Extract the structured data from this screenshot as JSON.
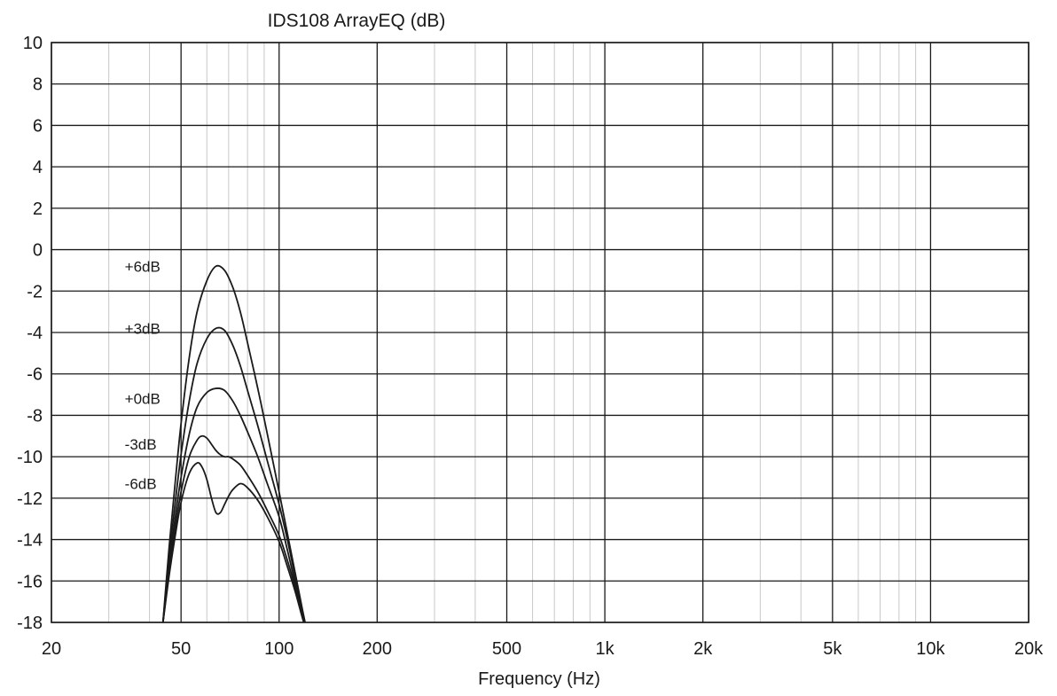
{
  "chart_data": {
    "type": "line",
    "title": "IDS108 ArrayEQ (dB)",
    "xlabel": "Frequency (Hz)",
    "ylabel": "",
    "x_scale": "log",
    "xlim": [
      20,
      20000
    ],
    "ylim": [
      -18,
      10
    ],
    "grid": true,
    "x_major_ticks": [
      20,
      50,
      100,
      200,
      500,
      1000,
      2000,
      5000,
      10000,
      20000
    ],
    "x_tick_labels": [
      "20",
      "50",
      "100",
      "200",
      "500",
      "1k",
      "2k",
      "5k",
      "10k",
      "20k"
    ],
    "x_minor_ticks": [
      30,
      40,
      60,
      70,
      80,
      90,
      300,
      400,
      600,
      700,
      800,
      900,
      3000,
      4000,
      6000,
      7000,
      8000,
      9000
    ],
    "y_ticks": [
      10,
      8,
      6,
      4,
      2,
      0,
      -2,
      -4,
      -6,
      -8,
      -10,
      -12,
      -14,
      -16,
      -18
    ],
    "y_tick_labels": [
      "10",
      "8",
      "6",
      "4",
      "2",
      "0",
      "-2",
      "-4",
      "-6",
      "-8",
      "-10",
      "-12",
      "-14",
      "-16",
      "-18"
    ],
    "series": [
      {
        "name": "+6dB",
        "label_anchor": [
          30,
          -0.8
        ],
        "x": [
          44,
          46,
          48,
          50,
          53,
          56,
          60,
          64,
          68,
          72,
          76,
          80,
          86,
          92,
          100,
          106,
          112,
          118,
          122
        ],
        "y": [
          -18,
          -14.3,
          -11.2,
          -8.4,
          -5.2,
          -3.0,
          -1.5,
          -0.8,
          -1.0,
          -1.8,
          -3.0,
          -4.5,
          -6.7,
          -8.9,
          -11.7,
          -13.7,
          -15.6,
          -17.4,
          -18.5
        ]
      },
      {
        "name": "+3dB",
        "label_anchor": [
          30,
          -3.8
        ],
        "x": [
          44,
          46,
          48,
          50,
          53,
          56,
          60,
          64,
          68,
          72,
          76,
          80,
          86,
          92,
          100,
          106,
          112,
          118,
          122
        ],
        "y": [
          -18,
          -14.8,
          -12.2,
          -9.9,
          -7.3,
          -5.5,
          -4.3,
          -3.8,
          -3.9,
          -4.6,
          -5.6,
          -6.8,
          -8.5,
          -10.2,
          -12.3,
          -14.0,
          -15.8,
          -17.5,
          -18.5
        ]
      },
      {
        "name": "+0dB",
        "label_anchor": [
          30,
          -7.2
        ],
        "x": [
          44,
          46,
          48,
          50,
          53,
          56,
          60,
          64,
          68,
          72,
          76,
          80,
          86,
          92,
          100,
          106,
          112,
          118,
          122
        ],
        "y": [
          -18,
          -15.2,
          -12.9,
          -11.0,
          -8.9,
          -7.6,
          -6.9,
          -6.7,
          -6.8,
          -7.3,
          -8.0,
          -8.8,
          -10.0,
          -11.3,
          -12.9,
          -14.5,
          -16.1,
          -17.6,
          -18.5
        ]
      },
      {
        "name": "-3dB",
        "label_anchor": [
          30,
          -9.4
        ],
        "x": [
          44,
          46,
          48,
          50,
          53,
          56,
          58,
          60,
          62,
          64,
          66,
          68,
          70,
          72,
          76,
          80,
          86,
          92,
          100,
          106,
          112,
          118,
          122
        ],
        "y": [
          -18,
          -15.5,
          -13.4,
          -11.7,
          -10.0,
          -9.2,
          -9.0,
          -9.1,
          -9.4,
          -9.7,
          -9.9,
          -10.0,
          -10.0,
          -10.1,
          -10.4,
          -10.9,
          -11.7,
          -12.6,
          -13.8,
          -15.0,
          -16.3,
          -17.7,
          -18.5
        ]
      },
      {
        "name": "-6dB",
        "label_anchor": [
          30,
          -11.3
        ],
        "x": [
          44,
          46,
          48,
          50,
          53,
          56,
          58,
          60,
          62,
          64,
          66,
          68,
          70,
          72,
          76,
          80,
          86,
          92,
          100,
          106,
          112,
          118,
          122
        ],
        "y": [
          -18,
          -15.7,
          -13.8,
          -12.2,
          -10.8,
          -10.3,
          -10.5,
          -11.1,
          -12.0,
          -12.7,
          -12.7,
          -12.3,
          -11.9,
          -11.6,
          -11.3,
          -11.5,
          -12.1,
          -12.9,
          -14.1,
          -15.3,
          -16.5,
          -17.8,
          -18.5
        ]
      }
    ]
  }
}
